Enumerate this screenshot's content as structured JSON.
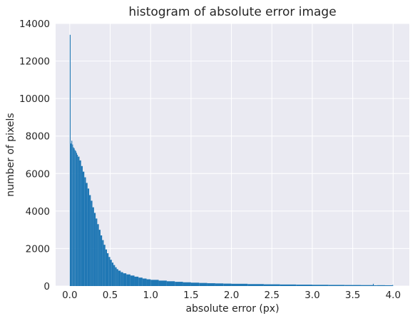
{
  "chart_data": {
    "type": "bar",
    "title": "histogram of absolute error image",
    "xlabel": "absolute error (px)",
    "ylabel": "number of pixels",
    "xlim": [
      -0.175,
      4.2
    ],
    "ylim": [
      0,
      14000
    ],
    "x_ticks": [
      "0.0",
      "0.5",
      "1.0",
      "1.5",
      "2.0",
      "2.5",
      "3.0",
      "3.5",
      "4.0"
    ],
    "y_ticks": [
      "0",
      "2000",
      "4000",
      "6000",
      "8000",
      "10000",
      "12000",
      "14000"
    ],
    "grid": true,
    "bin_width": 0.01,
    "series": [
      {
        "color": "#1f77b4",
        "x": [
          0.0,
          0.01,
          0.02,
          0.03,
          0.04,
          0.05,
          0.06,
          0.07,
          0.08,
          0.09,
          0.1,
          0.12,
          0.14,
          0.16,
          0.18,
          0.2,
          0.22,
          0.24,
          0.26,
          0.28,
          0.3,
          0.32,
          0.34,
          0.36,
          0.38,
          0.4,
          0.42,
          0.44,
          0.46,
          0.48,
          0.5,
          0.52,
          0.54,
          0.56,
          0.58,
          0.6,
          0.63,
          0.66,
          0.7,
          0.75,
          0.8,
          0.85,
          0.9,
          0.95,
          1.0,
          1.1,
          1.2,
          1.3,
          1.4,
          1.5,
          1.6,
          1.7,
          1.8,
          1.9,
          2.0,
          2.2,
          2.4,
          2.6,
          2.8,
          3.0,
          3.2,
          3.4,
          3.6,
          3.75,
          3.76,
          3.8,
          3.9,
          3.99
        ],
        "values": [
          13400,
          7600,
          7750,
          7550,
          7400,
          7350,
          7250,
          7200,
          7100,
          7000,
          6900,
          6700,
          6400,
          6100,
          5800,
          5500,
          5200,
          4850,
          4550,
          4200,
          3900,
          3600,
          3300,
          3000,
          2700,
          2450,
          2200,
          1950,
          1750,
          1550,
          1400,
          1250,
          1120,
          1000,
          900,
          820,
          740,
          680,
          620,
          560,
          500,
          450,
          400,
          360,
          330,
          290,
          255,
          225,
          200,
          180,
          165,
          150,
          140,
          130,
          120,
          105,
          92,
          82,
          74,
          66,
          60,
          55,
          50,
          120,
          40,
          45,
          40,
          60
        ]
      }
    ]
  }
}
